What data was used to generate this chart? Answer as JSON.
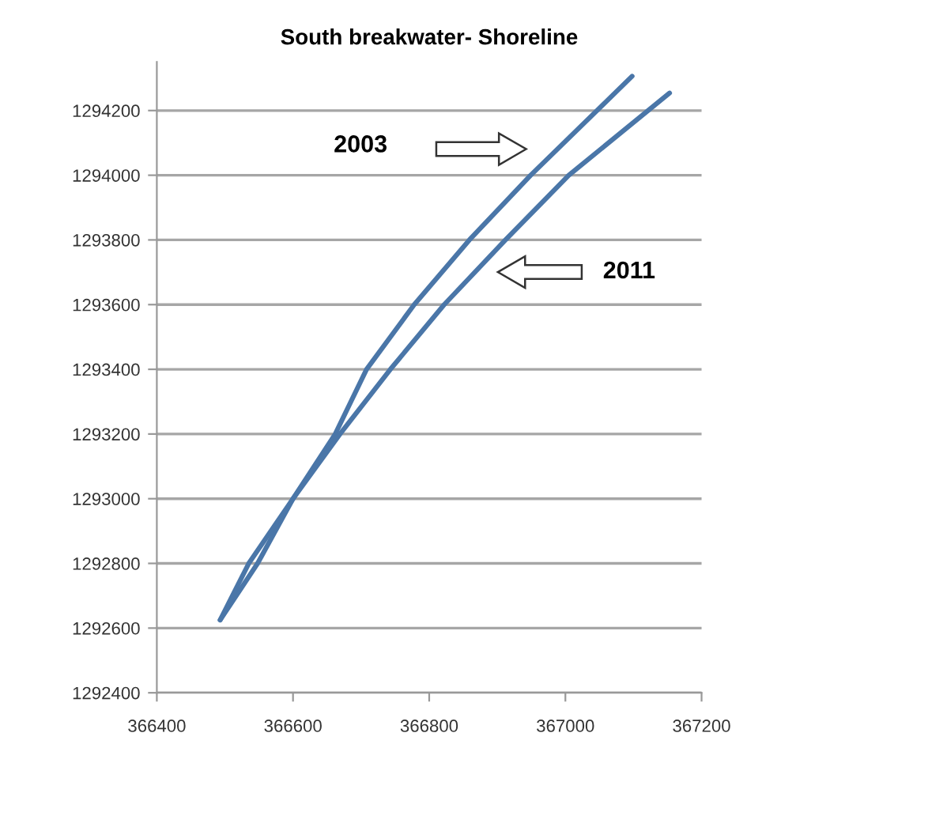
{
  "chart_data": {
    "type": "line",
    "title": "South breakwater- Shoreline",
    "xlim": [
      366400,
      367200
    ],
    "xticks": [
      366400,
      366600,
      366800,
      367000,
      367200
    ],
    "ylim": [
      1292400,
      1294350
    ],
    "yticks": [
      1292400,
      1292600,
      1292800,
      1293000,
      1293200,
      1293400,
      1293600,
      1293800,
      1294000,
      1294200
    ],
    "grid": "y",
    "marker": "none",
    "line_style": "solid",
    "series": [
      {
        "color": "#4a76a8",
        "x": [
          366493,
          366548,
          366600,
          366662,
          366708,
          366778,
          366859,
          366949,
          367098
        ],
        "values": [
          1292625,
          1292800,
          1293000,
          1293200,
          1293400,
          1293600,
          1293800,
          1294000,
          1294306
        ]
      },
      {
        "color": "#4a76a8",
        "x": [
          366493,
          366535,
          366600,
          366669,
          366743,
          366822,
          366912,
          367005,
          367153
        ],
        "values": [
          1292625,
          1292800,
          1293000,
          1293200,
          1293400,
          1293600,
          1293800,
          1294000,
          1294254
        ]
      }
    ],
    "annotations": [
      "2003",
      "2011"
    ]
  }
}
